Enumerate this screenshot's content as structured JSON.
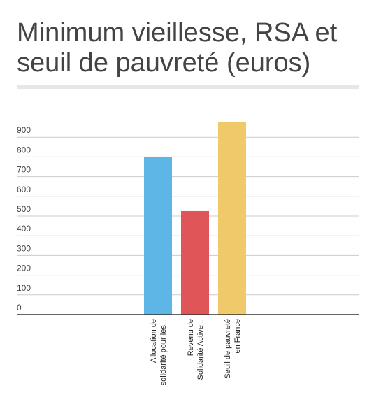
{
  "title_line1": "Minimum vieillesse, RSA et",
  "title_line2": "seuil de pauvreté (euros)",
  "chart_data": {
    "type": "bar",
    "title": "Minimum vieillesse, RSA et seuil de pauvreté (euros)",
    "categories": [
      [
        "Allocation de",
        "solidarité pour les..."
      ],
      [
        "Revenu de",
        "Solidarité Active..."
      ],
      [
        "Seuil de pauvreté",
        "en France"
      ]
    ],
    "values": [
      801,
      525,
      977
    ],
    "colors": [
      "#5db6e5",
      "#e05658",
      "#f0ca6a"
    ],
    "yticks": [
      0,
      100,
      200,
      300,
      400,
      500,
      600,
      700,
      800,
      900
    ],
    "ylim": [
      0,
      1000
    ],
    "grid": true,
    "legend": "none"
  }
}
